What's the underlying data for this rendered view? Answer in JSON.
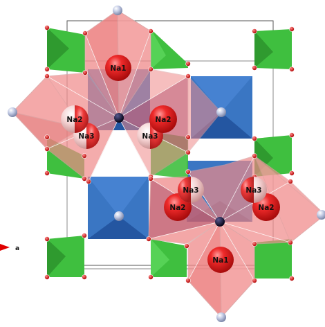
{
  "axis": {
    "label": "a"
  },
  "ions": [
    {
      "id": "na1-top",
      "label": "Na1",
      "tone": "red"
    },
    {
      "id": "na2-upper-left",
      "label": "Na2",
      "tone": "half"
    },
    {
      "id": "na2-upper-right",
      "label": "Na2",
      "tone": "red"
    },
    {
      "id": "na3-upper-left",
      "label": "Na3",
      "tone": "half"
    },
    {
      "id": "na3-upper-right",
      "label": "Na3",
      "tone": "half"
    },
    {
      "id": "na3-lower-left",
      "label": "Na3",
      "tone": "half"
    },
    {
      "id": "na3-lower-right",
      "label": "Na3",
      "tone": "half"
    },
    {
      "id": "na2-lower-left",
      "label": "Na2",
      "tone": "red"
    },
    {
      "id": "na2-lower-right",
      "label": "Na2",
      "tone": "red"
    },
    {
      "id": "na1-bottom",
      "label": "Na1",
      "tone": "red"
    }
  ],
  "colors": {
    "tetrahedron": "#3fbf3f",
    "octahedron": "#2f6fc0",
    "sodium_polyhedron": "#f08a8a",
    "sodium": "#e01818",
    "oxygen": "#e01010",
    "cation_light": "#c8d0e8",
    "cation_dark": "#101030",
    "axis_arrow": "#e00000"
  }
}
